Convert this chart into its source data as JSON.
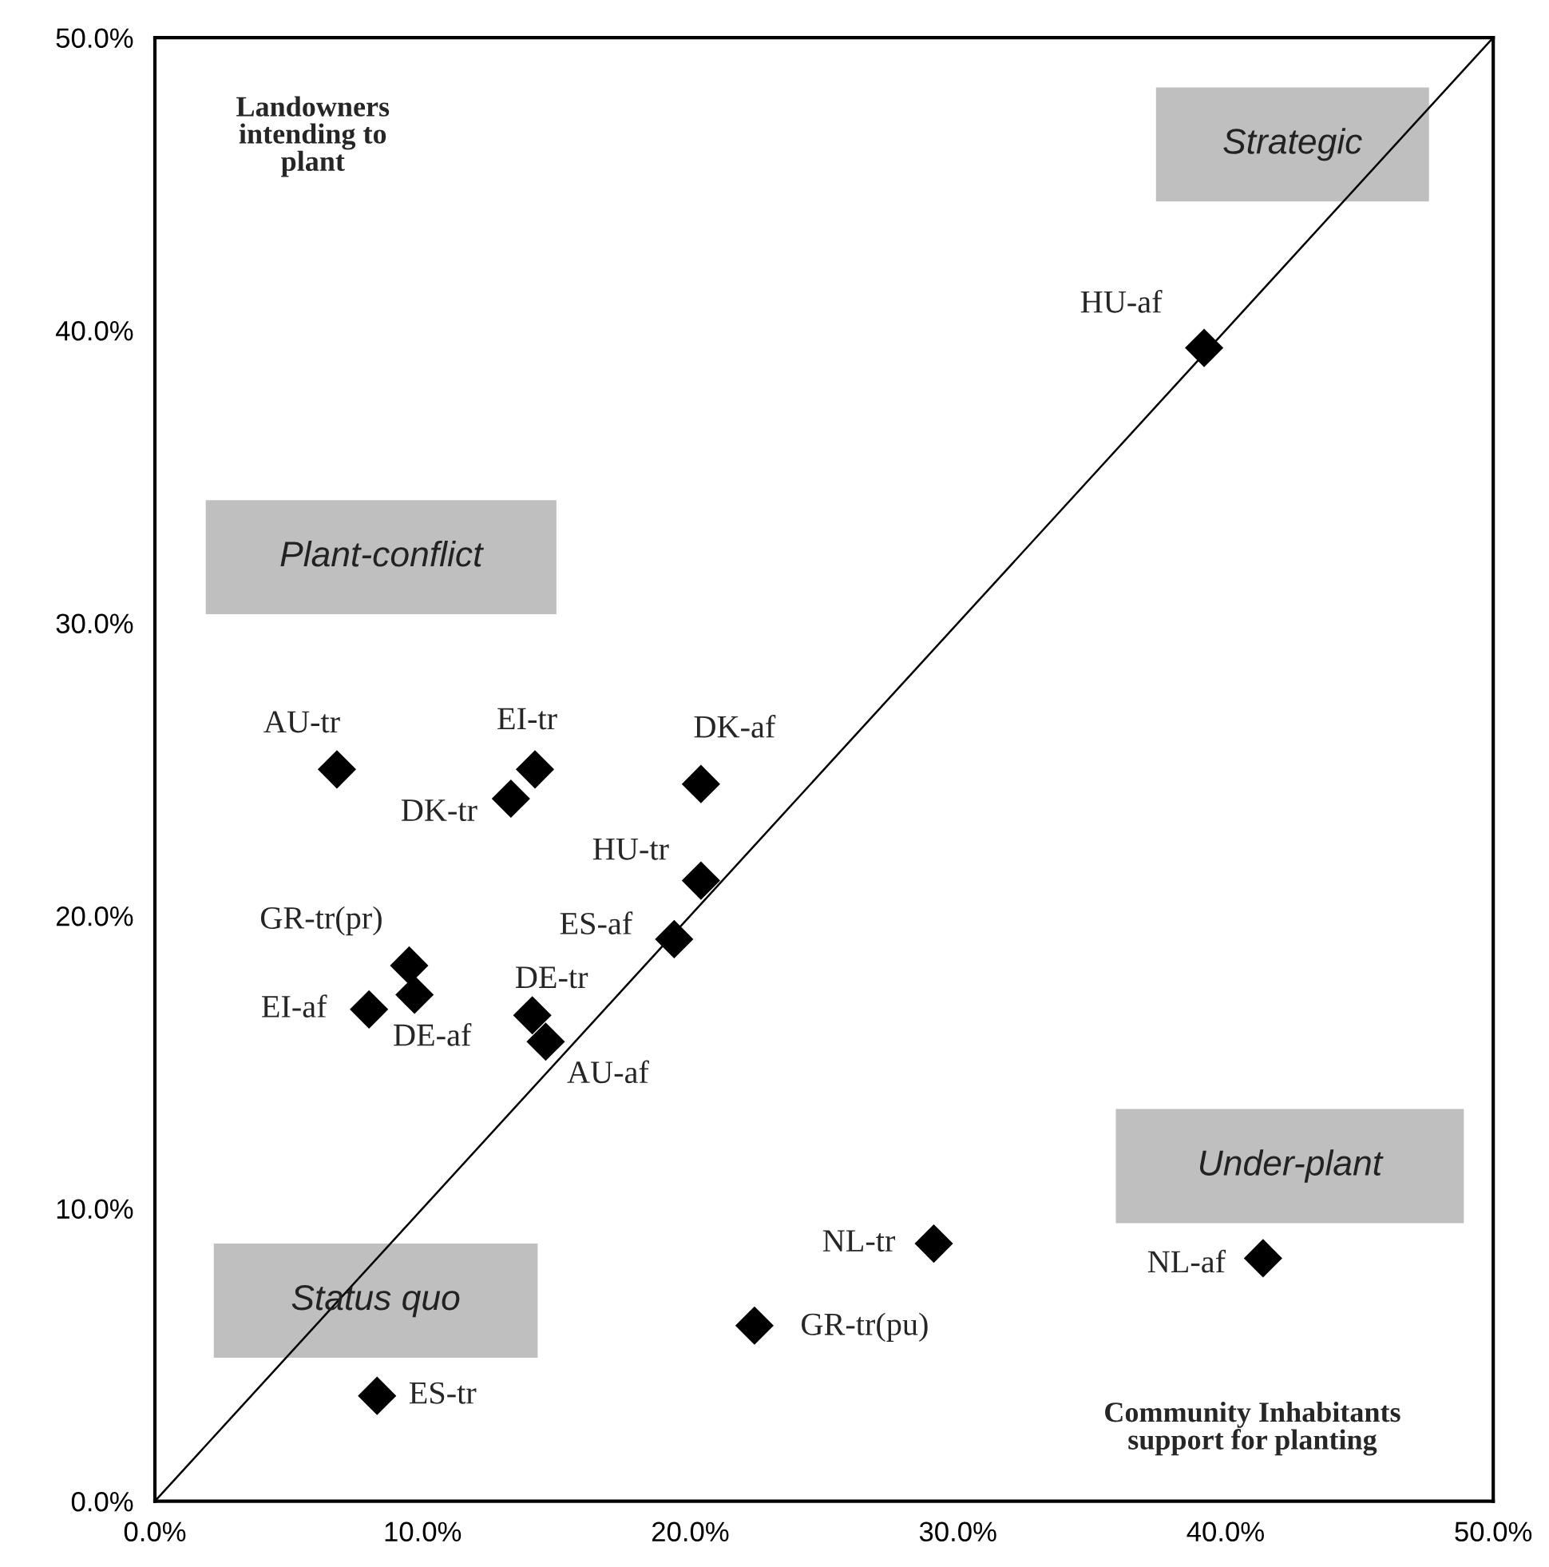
{
  "chart_data": {
    "type": "scatter",
    "xlabel": "Community Inhabitants\nsupport for planting",
    "ylabel": "Landowners\nintending to\nplant",
    "xlim": [
      0,
      50
    ],
    "ylim": [
      0,
      50
    ],
    "xticks": [
      {
        "value": 0,
        "label": "0.0%"
      },
      {
        "value": 10,
        "label": "10.0%"
      },
      {
        "value": 20,
        "label": "20.0%"
      },
      {
        "value": 30,
        "label": "30.0%"
      },
      {
        "value": 40,
        "label": "40.0%"
      },
      {
        "value": 50,
        "label": "50.0%"
      }
    ],
    "yticks": [
      {
        "value": 0,
        "label": "0.0%"
      },
      {
        "value": 10,
        "label": "10.0%"
      },
      {
        "value": 20,
        "label": "20.0%"
      },
      {
        "value": 30,
        "label": "30.0%"
      },
      {
        "value": 40,
        "label": "40.0%"
      },
      {
        "value": 50,
        "label": "50.0%"
      }
    ],
    "grid": false,
    "legend": false,
    "marker": "diamond",
    "series": [
      {
        "color": "#000000",
        "x": [
          39.2,
          6.8,
          14.2,
          13.3,
          20.4,
          20.4,
          19.4,
          9.5,
          9.7,
          8.0,
          14.1,
          14.6,
          29.1,
          41.4,
          22.4,
          8.3
        ],
        "values": [
          39.4,
          25.0,
          25.0,
          24.0,
          24.5,
          21.2,
          19.2,
          18.3,
          17.3,
          16.8,
          16.6,
          15.7,
          8.8,
          8.3,
          6.0,
          3.6
        ]
      },
      {
        "type": "line",
        "color": "#000000",
        "line_style": "solid",
        "marker": "none",
        "x": [
          0,
          50
        ],
        "values": [
          0,
          50
        ]
      }
    ],
    "annotations": [
      {
        "text": "HU-af",
        "x": 39.2,
        "y": 39.4
      },
      {
        "text": "AU-tr",
        "x": 6.8,
        "y": 25.0
      },
      {
        "text": "EI-tr",
        "x": 14.2,
        "y": 25.0
      },
      {
        "text": "DK-tr",
        "x": 13.3,
        "y": 24.0
      },
      {
        "text": "DK-af",
        "x": 20.4,
        "y": 24.5
      },
      {
        "text": "HU-tr",
        "x": 20.4,
        "y": 21.2
      },
      {
        "text": "ES-af",
        "x": 19.4,
        "y": 19.2
      },
      {
        "text": "GR-tr(pr)",
        "x": 9.5,
        "y": 18.3
      },
      {
        "text": "DE-af",
        "x": 9.7,
        "y": 17.3
      },
      {
        "text": "EI-af",
        "x": 8.0,
        "y": 16.8
      },
      {
        "text": "DE-tr",
        "x": 14.1,
        "y": 16.6
      },
      {
        "text": "AU-af",
        "x": 14.6,
        "y": 15.7
      },
      {
        "text": "NL-tr",
        "x": 29.1,
        "y": 8.8
      },
      {
        "text": "NL-af",
        "x": 41.4,
        "y": 8.3
      },
      {
        "text": "GR-tr(pu)",
        "x": 22.4,
        "y": 6.0
      },
      {
        "text": "ES-tr",
        "x": 8.3,
        "y": 3.6
      },
      "Strategic",
      "Plant-conflict",
      "Under-plant",
      "Status quo"
    ]
  }
}
